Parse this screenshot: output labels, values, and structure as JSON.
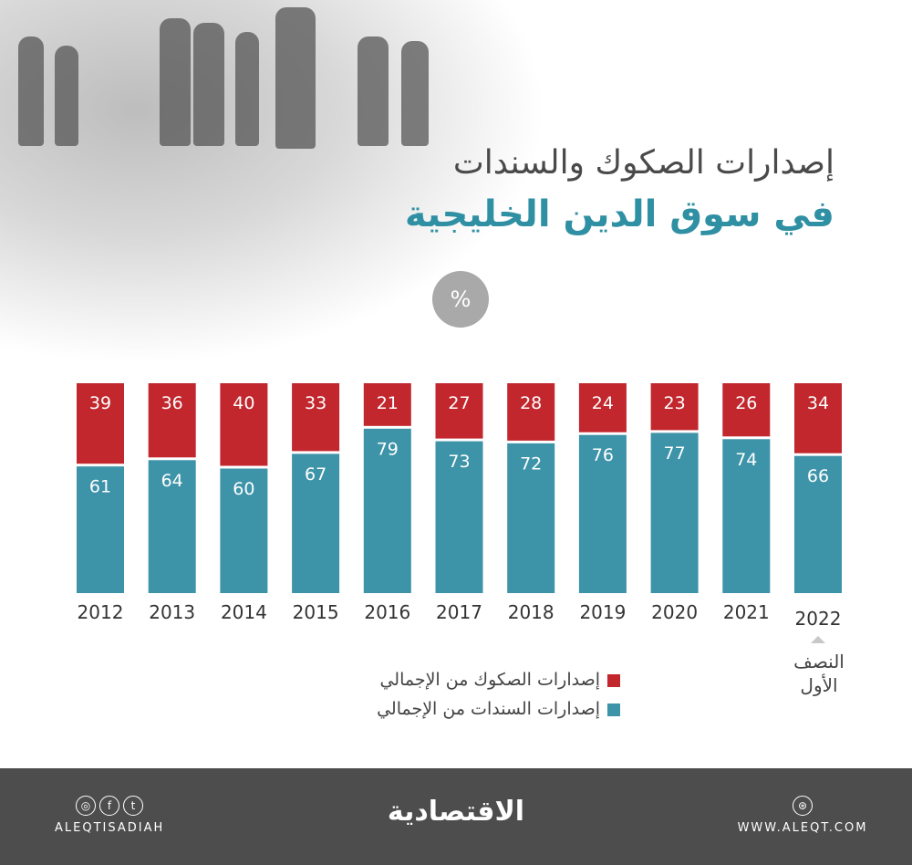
{
  "title_line1": "إصدارات الصكوك والسندات",
  "title_line2": "في سوق الدين الخليجية",
  "unit": "%",
  "note": "النصف الأول",
  "colors": {
    "sukuk": "#c1272d",
    "bonds": "#3d93a8",
    "title_accent": "#2f8fa3",
    "footer": "#4d4d4d"
  },
  "chart_data": {
    "type": "bar",
    "stacked": true,
    "categories": [
      "2012",
      "2013",
      "2014",
      "2015",
      "2016",
      "2017",
      "2018",
      "2019",
      "2020",
      "2021",
      "2022"
    ],
    "series": [
      {
        "name": "إصدارات الصكوك من الإجمالي",
        "color": "#c1272d",
        "values": [
          39,
          36,
          40,
          33,
          21,
          27,
          28,
          24,
          23,
          26,
          34
        ]
      },
      {
        "name": "إصدارات السندات من الإجمالي",
        "color": "#3d93a8",
        "values": [
          61,
          64,
          60,
          67,
          79,
          73,
          72,
          76,
          77,
          74,
          66
        ]
      }
    ],
    "ylim": [
      0,
      100
    ],
    "legend": "bottom"
  },
  "footer": {
    "social_handle": "ALEQTISADIAH",
    "logo": "الاقتصادية",
    "website": "WWW.ALEQT.COM",
    "icons": [
      "instagram-icon",
      "facebook-icon",
      "twitter-icon",
      "dribbble-icon"
    ]
  }
}
